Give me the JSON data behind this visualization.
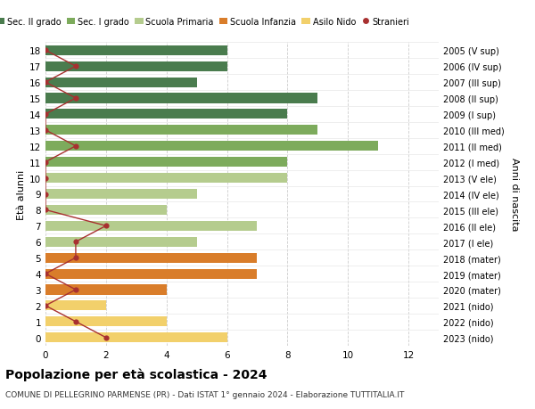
{
  "ages": [
    18,
    17,
    16,
    15,
    14,
    13,
    12,
    11,
    10,
    9,
    8,
    7,
    6,
    5,
    4,
    3,
    2,
    1,
    0
  ],
  "right_labels": [
    "2005 (V sup)",
    "2006 (IV sup)",
    "2007 (III sup)",
    "2008 (II sup)",
    "2009 (I sup)",
    "2010 (III med)",
    "2011 (II med)",
    "2012 (I med)",
    "2013 (V ele)",
    "2014 (IV ele)",
    "2015 (III ele)",
    "2016 (II ele)",
    "2017 (I ele)",
    "2018 (mater)",
    "2019 (mater)",
    "2020 (mater)",
    "2021 (nido)",
    "2022 (nido)",
    "2023 (nido)"
  ],
  "bar_values": [
    6,
    6,
    5,
    9,
    8,
    9,
    11,
    8,
    8,
    5,
    4,
    7,
    5,
    7,
    7,
    4,
    2,
    4,
    6
  ],
  "bar_colors": [
    "#4a7c4e",
    "#4a7c4e",
    "#4a7c4e",
    "#4a7c4e",
    "#4a7c4e",
    "#7dab5c",
    "#7dab5c",
    "#7dab5c",
    "#b5cc8e",
    "#b5cc8e",
    "#b5cc8e",
    "#b5cc8e",
    "#b5cc8e",
    "#d97d2a",
    "#d97d2a",
    "#d97d2a",
    "#f2d06b",
    "#f2d06b",
    "#f2d06b"
  ],
  "stranieri_values": [
    0,
    1,
    0,
    1,
    0,
    0,
    1,
    0,
    0,
    0,
    0,
    2,
    1,
    1,
    0,
    1,
    0,
    1,
    2
  ],
  "legend_labels": [
    "Sec. II grado",
    "Sec. I grado",
    "Scuola Primaria",
    "Scuola Infanzia",
    "Asilo Nido",
    "Stranieri"
  ],
  "legend_colors": [
    "#4a7c4e",
    "#7dab5c",
    "#b5cc8e",
    "#d97d2a",
    "#f2d06b",
    "#a83030"
  ],
  "title": "Popolazione per età scolastica - 2024",
  "subtitle": "COMUNE DI PELLEGRINO PARMENSE (PR) - Dati ISTAT 1° gennaio 2024 - Elaborazione TUTTITALIA.IT",
  "ylabel": "Età alunni",
  "y2label": "Anni di nascita",
  "xlabel_ticks": [
    0,
    2,
    4,
    6,
    8,
    10,
    12
  ],
  "xlim": [
    0,
    13
  ],
  "ylim": [
    -0.5,
    18.5
  ],
  "bar_height": 0.62,
  "bg_color": "#ffffff",
  "grid_color": "#cccccc",
  "stranieri_line_color": "#a83030",
  "stranieri_dot_color": "#a83030",
  "stranieri_dot_size": 20,
  "title_fontsize": 10,
  "subtitle_fontsize": 6.5,
  "tick_fontsize": 7.5,
  "ylabel_fontsize": 8,
  "legend_fontsize": 7
}
